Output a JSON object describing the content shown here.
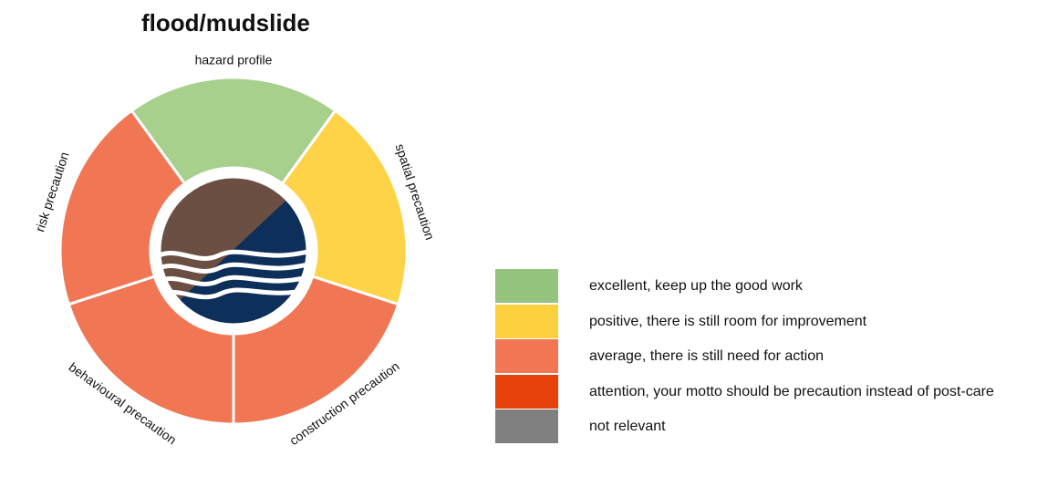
{
  "chart_data": {
    "type": "pie",
    "title": "flood/mudslide",
    "segments": [
      {
        "label": "hazard profile",
        "rating": "excellent",
        "value": 1
      },
      {
        "label": "spatial precaution",
        "rating": "positive",
        "value": 1
      },
      {
        "label": "construction precaution",
        "rating": "average",
        "value": 1
      },
      {
        "label": "behavioural precaution",
        "rating": "average",
        "value": 1
      },
      {
        "label": "risk precaution",
        "rating": "average",
        "value": 1
      }
    ],
    "legend": [
      {
        "key": "excellent",
        "label": "excellent, keep up the good work",
        "color": "#94c47d"
      },
      {
        "key": "positive",
        "label": "positive, there is still room for improvement",
        "color": "#fdd040"
      },
      {
        "key": "average",
        "label": "average, there is still need for action",
        "color": "#f07654"
      },
      {
        "key": "attention",
        "label": "attention, your motto should be precaution instead of post-care",
        "color": "#e8420c"
      },
      {
        "key": "not_relevant",
        "label": "not relevant",
        "color": "#808080"
      }
    ],
    "segment_colors": {
      "excellent": "#a8d08d",
      "positive": "#ffd347",
      "average": "#f07654"
    },
    "center_icon": "flood-mudslide-icon",
    "center_colors": {
      "mud": "#6b4f42",
      "water": "#0d2f5a",
      "waves": "#ffffff"
    }
  }
}
